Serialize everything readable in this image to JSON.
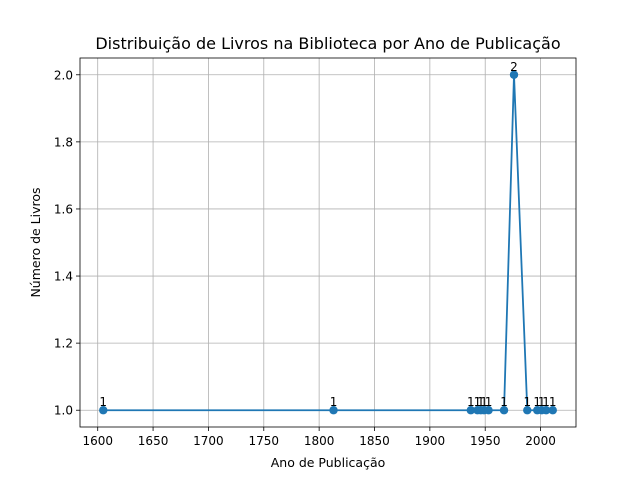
{
  "chart_data": {
    "type": "line",
    "title": "Distribuição de Livros na Biblioteca por Ano de Publicação",
    "xlabel": "Ano de Publicação",
    "ylabel": "Número de Livros",
    "xlim": [
      1584,
      2032
    ],
    "ylim": [
      0.95,
      2.05
    ],
    "grid": true,
    "xticks": [
      1600,
      1650,
      1700,
      1750,
      1800,
      1850,
      1900,
      1950,
      2000
    ],
    "yticks": [
      "1.0",
      "1.2",
      "1.4",
      "1.6",
      "1.8",
      "2.0"
    ],
    "series": [
      {
        "color": "#1f77b4",
        "x": [
          1605,
          1813,
          1937,
          1943,
          1946,
          1949,
          1953,
          1967,
          1976,
          1988,
          1997,
          2001,
          2005,
          2011
        ],
        "y": [
          1,
          1,
          1,
          1,
          1,
          1,
          1,
          1,
          2,
          1,
          1,
          1,
          1,
          1
        ],
        "labels": [
          "1",
          "1",
          "1",
          "1",
          "1",
          "1",
          "1",
          "1",
          "2",
          "1",
          "1",
          "1",
          "1",
          "1"
        ]
      }
    ]
  }
}
